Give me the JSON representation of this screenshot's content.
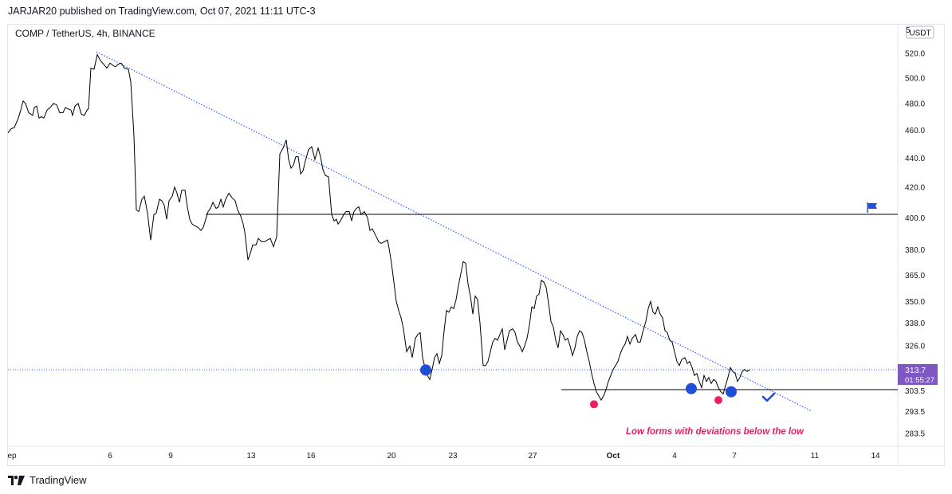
{
  "header": {
    "publisher_line": "JARJAR20 published on TradingView.com, Oct 07, 2021 11:11 UTC-3"
  },
  "symbol": {
    "title": "COMP / TetherUS, 4h, BINANCE"
  },
  "price_axis": {
    "currency": "USDT",
    "top_partial": "5",
    "labels": [
      "520.0",
      "500.0",
      "480.0",
      "460.0",
      "440.0",
      "420.0",
      "400.0",
      "380.0",
      "365.0",
      "350.0",
      "338.0",
      "326.0",
      "303.5",
      "293.5",
      "283.5"
    ],
    "current_price": "313.7",
    "countdown": "01:55:27"
  },
  "time_axis": {
    "labels": [
      "ep",
      "6",
      "9",
      "13",
      "16",
      "20",
      "23",
      "27",
      "Oct",
      "4",
      "7",
      "11",
      "14"
    ]
  },
  "annotation": {
    "text": "Low forms with deviations below the low"
  },
  "footer": {
    "brand": "TradingView"
  },
  "colors": {
    "price_line": "#000000",
    "trendline": "#2962ff",
    "marker_blue": "#1e4fd8",
    "marker_pink": "#e91e63",
    "annotation": "#e91e63",
    "current_price_badge": "#7e57c2"
  },
  "icons": [
    "flag-icon",
    "checkmark-icon",
    "tradingview-logo-icon"
  ],
  "chart_data": {
    "type": "line",
    "title": "COMP / TetherUS, 4h, BINANCE",
    "xlabel": "",
    "ylabel": "",
    "x_ticks": [
      "ep",
      "6",
      "9",
      "13",
      "16",
      "20",
      "23",
      "27",
      "Oct",
      "4",
      "7",
      "11",
      "14"
    ],
    "ylim": [
      280,
      535
    ],
    "y_ticks": [
      520.0,
      500.0,
      480.0,
      460.0,
      440.0,
      420.0,
      400.0,
      380.0,
      365.0,
      350.0,
      338.0,
      326.0,
      303.5,
      293.5,
      283.5
    ],
    "log_scale": true,
    "grid": false,
    "series": [
      {
        "values": [
          [
            0,
            458
          ],
          [
            4,
            461
          ],
          [
            8,
            462
          ],
          [
            13,
            469
          ],
          [
            16,
            475
          ],
          [
            19,
            482
          ],
          [
            22,
            480
          ],
          [
            26,
            473
          ],
          [
            31,
            471
          ],
          [
            33,
            477
          ],
          [
            36,
            478
          ],
          [
            39,
            469
          ],
          [
            42,
            470
          ],
          [
            45,
            469
          ],
          [
            49,
            475
          ],
          [
            53,
            477
          ],
          [
            57,
            480
          ],
          [
            61,
            479
          ],
          [
            65,
            473
          ],
          [
            69,
            473
          ],
          [
            72,
            477
          ],
          [
            75,
            476
          ],
          [
            79,
            475
          ],
          [
            81,
            471
          ],
          [
            84,
            478
          ],
          [
            88,
            480
          ],
          [
            92,
            472
          ],
          [
            96,
            471
          ],
          [
            99,
            475
          ],
          [
            101,
            476
          ],
          [
            104,
            508
          ],
          [
            108,
            507
          ],
          [
            112,
            519
          ],
          [
            116,
            514
          ],
          [
            120,
            511
          ],
          [
            124,
            508
          ],
          [
            128,
            512
          ],
          [
            132,
            510
          ],
          [
            135,
            509
          ],
          [
            138,
            511
          ],
          [
            142,
            512
          ],
          [
            146,
            508
          ],
          [
            151,
            507
          ],
          [
            154,
            497
          ],
          [
            158,
            456
          ],
          [
            161,
            405
          ],
          [
            164,
            404
          ],
          [
            168,
            412
          ],
          [
            171,
            414
          ],
          [
            175,
            403
          ],
          [
            179,
            386
          ],
          [
            183,
            402
          ],
          [
            186,
            403
          ],
          [
            190,
            412
          ],
          [
            193,
            411
          ],
          [
            196,
            408
          ],
          [
            199,
            399
          ],
          [
            202,
            411
          ],
          [
            206,
            414
          ],
          [
            209,
            420
          ],
          [
            212,
            416
          ],
          [
            215,
            410
          ],
          [
            218,
            418
          ],
          [
            222,
            418
          ],
          [
            225,
            407
          ],
          [
            228,
            399
          ],
          [
            231,
            396
          ],
          [
            234,
            395
          ],
          [
            238,
            394
          ],
          [
            242,
            392
          ],
          [
            245,
            394
          ],
          [
            248,
            399
          ],
          [
            251,
            404
          ],
          [
            254,
            406
          ],
          [
            257,
            410
          ],
          [
            261,
            406
          ],
          [
            264,
            407
          ],
          [
            267,
            412
          ],
          [
            270,
            407
          ],
          [
            273,
            412
          ],
          [
            277,
            416
          ],
          [
            281,
            413
          ],
          [
            285,
            411
          ],
          [
            288,
            405
          ],
          [
            292,
            401
          ],
          [
            295,
            396
          ],
          [
            297,
            391
          ],
          [
            301,
            374
          ],
          [
            304,
            378
          ],
          [
            307,
            383
          ],
          [
            311,
            383
          ],
          [
            314,
            387
          ],
          [
            318,
            385
          ],
          [
            322,
            385
          ],
          [
            325,
            386
          ],
          [
            329,
            387
          ],
          [
            333,
            382
          ],
          [
            337,
            388
          ],
          [
            341,
            443
          ],
          [
            345,
            447
          ],
          [
            349,
            453
          ],
          [
            352,
            439
          ],
          [
            355,
            433
          ],
          [
            358,
            435
          ],
          [
            361,
            441
          ],
          [
            364,
            441
          ],
          [
            367,
            429
          ],
          [
            370,
            431
          ],
          [
            373,
            438
          ],
          [
            377,
            446
          ],
          [
            381,
            448
          ],
          [
            385,
            439
          ],
          [
            389,
            447
          ],
          [
            392,
            441
          ],
          [
            395,
            432
          ],
          [
            398,
            428
          ],
          [
            402,
            427
          ],
          [
            406,
            402
          ],
          [
            409,
            398
          ],
          [
            412,
            399
          ],
          [
            414,
            396
          ],
          [
            417,
            398
          ],
          [
            421,
            402
          ],
          [
            424,
            404
          ],
          [
            428,
            404
          ],
          [
            431,
            398
          ],
          [
            434,
            404
          ],
          [
            437,
            406
          ],
          [
            440,
            407
          ],
          [
            443,
            402
          ],
          [
            447,
            404
          ],
          [
            451,
            400
          ],
          [
            454,
            392
          ],
          [
            457,
            393
          ],
          [
            461,
            389
          ],
          [
            465,
            385
          ],
          [
            468,
            384
          ],
          [
            472,
            385
          ],
          [
            476,
            386
          ],
          [
            478,
            381
          ],
          [
            481,
            372
          ],
          [
            484,
            361
          ],
          [
            487,
            350
          ],
          [
            490,
            345
          ],
          [
            493,
            341
          ],
          [
            496,
            335
          ],
          [
            500,
            323
          ],
          [
            504,
            326
          ],
          [
            507,
            320
          ],
          [
            511,
            330
          ],
          [
            514,
            332
          ],
          [
            517,
            333
          ],
          [
            520,
            320
          ],
          [
            523,
            315
          ],
          [
            526,
            311
          ],
          [
            529,
            309
          ],
          [
            532,
            314
          ],
          [
            535,
            320
          ],
          [
            538,
            322
          ],
          [
            541,
            317
          ],
          [
            544,
            321
          ],
          [
            547,
            334
          ],
          [
            550,
            345
          ],
          [
            553,
            344
          ],
          [
            556,
            347
          ],
          [
            559,
            346
          ],
          [
            562,
            351
          ],
          [
            565,
            359
          ],
          [
            568,
            366
          ],
          [
            571,
            373
          ],
          [
            574,
            372
          ],
          [
            577,
            360
          ],
          [
            580,
            353
          ],
          [
            583,
            343
          ],
          [
            586,
            353
          ],
          [
            589,
            351
          ],
          [
            592,
            338
          ],
          [
            596,
            316
          ],
          [
            599,
            316
          ],
          [
            602,
            318
          ],
          [
            605,
            323
          ],
          [
            608,
            328
          ],
          [
            611,
            330
          ],
          [
            614,
            329
          ],
          [
            617,
            332
          ],
          [
            620,
            335
          ],
          [
            623,
            324
          ],
          [
            626,
            329
          ],
          [
            629,
            334
          ],
          [
            633,
            335
          ],
          [
            636,
            333
          ],
          [
            639,
            328
          ],
          [
            642,
            326
          ],
          [
            645,
            323
          ],
          [
            648,
            326
          ],
          [
            651,
            330
          ],
          [
            654,
            337
          ],
          [
            657,
            347
          ],
          [
            660,
            346
          ],
          [
            663,
            353
          ],
          [
            666,
            354
          ],
          [
            669,
            362
          ],
          [
            672,
            361
          ],
          [
            675,
            358
          ],
          [
            678,
            349
          ],
          [
            681,
            339
          ],
          [
            684,
            336
          ],
          [
            687,
            329
          ],
          [
            690,
            325
          ],
          [
            693,
            334
          ],
          [
            696,
            332
          ],
          [
            699,
            329
          ],
          [
            702,
            330
          ],
          [
            705,
            326
          ],
          [
            708,
            321
          ],
          [
            711,
            325
          ],
          [
            714,
            331
          ],
          [
            717,
            334
          ],
          [
            720,
            333
          ],
          [
            723,
            329
          ],
          [
            726,
            323
          ],
          [
            729,
            318
          ],
          [
            732,
            312
          ],
          [
            735,
            307
          ],
          [
            738,
            303
          ],
          [
            741,
            301
          ],
          [
            744,
            299
          ],
          [
            747,
            301
          ],
          [
            750,
            304
          ],
          [
            753,
            308
          ],
          [
            756,
            311
          ],
          [
            759,
            314
          ],
          [
            762,
            316
          ],
          [
            765,
            318
          ],
          [
            768,
            322
          ],
          [
            771,
            325
          ],
          [
            774,
            327
          ],
          [
            777,
            331
          ],
          [
            780,
            327
          ],
          [
            783,
            330
          ],
          [
            787,
            332
          ],
          [
            790,
            328
          ],
          [
            793,
            328
          ],
          [
            796,
            333
          ],
          [
            800,
            339
          ],
          [
            803,
            346
          ],
          [
            806,
            350
          ],
          [
            809,
            344
          ],
          [
            812,
            343
          ],
          [
            815,
            347
          ],
          [
            818,
            343
          ],
          [
            821,
            341
          ],
          [
            824,
            334
          ],
          [
            827,
            333
          ],
          [
            830,
            329
          ],
          [
            833,
            328
          ],
          [
            836,
            323
          ],
          [
            839,
            318
          ],
          [
            842,
            316
          ],
          [
            845,
            319
          ],
          [
            849,
            320
          ],
          [
            852,
            317
          ],
          [
            855,
            318
          ],
          [
            858,
            315
          ],
          [
            861,
            311
          ],
          [
            864,
            312
          ],
          [
            867,
            308
          ],
          [
            870,
            305
          ],
          [
            873,
            311
          ],
          [
            876,
            308
          ],
          [
            879,
            310
          ],
          [
            882,
            307
          ],
          [
            885,
            309
          ],
          [
            888,
            308
          ],
          [
            891,
            305
          ],
          [
            894,
            303
          ],
          [
            897,
            302
          ],
          [
            900,
            306
          ],
          [
            903,
            310
          ],
          [
            906,
            315
          ],
          [
            909,
            313
          ],
          [
            912,
            312
          ],
          [
            915,
            308
          ],
          [
            918,
            310
          ],
          [
            921,
            313
          ],
          [
            924,
            314
          ],
          [
            927,
            313
          ],
          [
            931,
            314
          ]
        ],
        "note": "values as [day-index, price]; day-index 0 = left edge of visible range"
      }
    ],
    "horizontal_lines": [
      401.5,
      303.7
    ],
    "trendline": {
      "from": [
        112,
        519
      ],
      "to": [
        1010,
        295
      ]
    },
    "markers": [
      {
        "x": 524,
        "y": 313.7,
        "color": "blue"
      },
      {
        "x": 735,
        "y": 297,
        "color": "pink"
      },
      {
        "x": 857,
        "y": 304.5,
        "color": "blue"
      },
      {
        "x": 891,
        "y": 299,
        "color": "pink"
      },
      {
        "x": 907,
        "y": 303,
        "color": "blue"
      }
    ],
    "current_price": 313.7
  }
}
